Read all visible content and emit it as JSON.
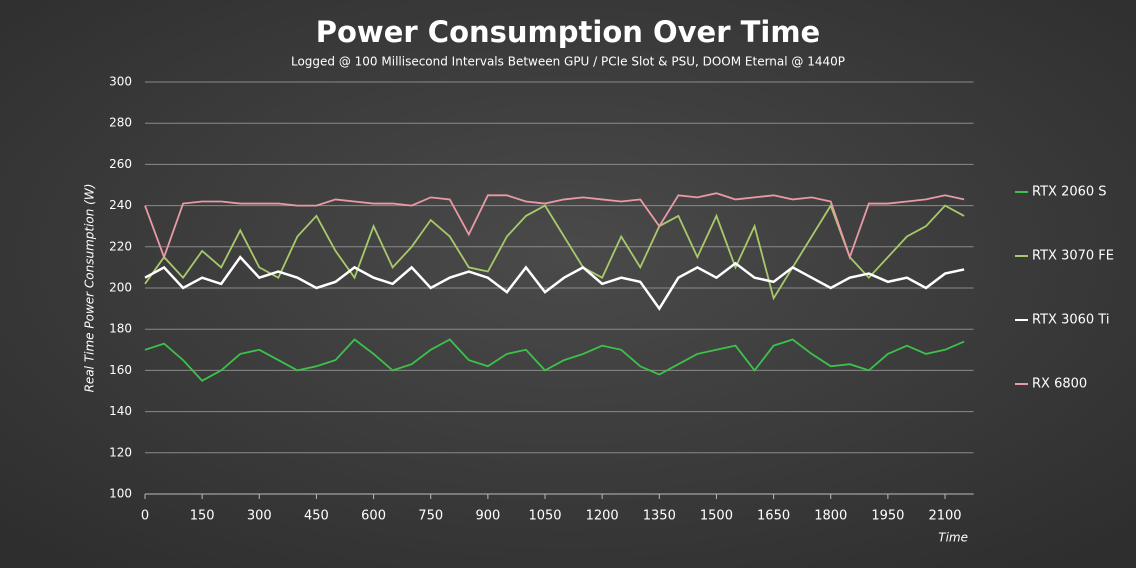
{
  "chart_data": {
    "type": "line",
    "title": "Power Consumption Over Time",
    "subtitle": "Logged @ 100 Millisecond Intervals Between GPU / PCIe Slot & PSU, DOOM Eternal @ 1440P",
    "y_label": "Real Time Power Consumption (W)",
    "x_label": "Time",
    "x": [
      0,
      50,
      100,
      150,
      200,
      250,
      300,
      350,
      400,
      450,
      500,
      550,
      600,
      650,
      700,
      750,
      800,
      850,
      900,
      950,
      1000,
      1050,
      1100,
      1150,
      1200,
      1250,
      1300,
      1350,
      1400,
      1450,
      1500,
      1550,
      1600,
      1650,
      1700,
      1750,
      1800,
      1850,
      1900,
      1950,
      2000,
      2050,
      2100,
      2150
    ],
    "xlim": [
      0,
      2175
    ],
    "xticks": [
      0,
      150,
      300,
      450,
      600,
      750,
      900,
      1050,
      1200,
      1350,
      1500,
      1650,
      1800,
      1950,
      2100
    ],
    "ylim": [
      100,
      300
    ],
    "yticks": [
      100,
      120,
      140,
      160,
      180,
      200,
      220,
      240,
      260,
      280,
      300
    ],
    "grid": true,
    "legend": "right",
    "series": [
      {
        "name": "RTX 2060 S",
        "color": "#3cc24a",
        "values": [
          170,
          173,
          165,
          155,
          160,
          168,
          170,
          165,
          160,
          162,
          165,
          175,
          168,
          160,
          163,
          170,
          175,
          165,
          162,
          168,
          170,
          160,
          165,
          168,
          172,
          170,
          162,
          158,
          163,
          168,
          170,
          172,
          160,
          172,
          175,
          168,
          162,
          163,
          160,
          168,
          172,
          168,
          170,
          174
        ]
      },
      {
        "name": "RTX 3070 FE",
        "color": "#a8c96a",
        "values": [
          202,
          215,
          205,
          218,
          210,
          228,
          210,
          205,
          225,
          235,
          218,
          205,
          230,
          210,
          220,
          233,
          225,
          210,
          208,
          225,
          235,
          240,
          225,
          210,
          205,
          225,
          210,
          230,
          235,
          215,
          235,
          210,
          230,
          195,
          210,
          225,
          240,
          215,
          205,
          215,
          225,
          230,
          240,
          235
        ]
      },
      {
        "name": "RTX 3060 Ti",
        "color": "#ffffff",
        "values": [
          205,
          210,
          200,
          205,
          202,
          215,
          205,
          208,
          205,
          200,
          203,
          210,
          205,
          202,
          210,
          200,
          205,
          208,
          205,
          198,
          210,
          198,
          205,
          210,
          202,
          205,
          203,
          190,
          205,
          210,
          205,
          212,
          205,
          203,
          210,
          205,
          200,
          205,
          207,
          203,
          205,
          200,
          207,
          209
        ]
      },
      {
        "name": "RX 6800",
        "color": "#e89aa5",
        "values": [
          240,
          215,
          241,
          242,
          242,
          241,
          241,
          241,
          240,
          240,
          243,
          242,
          241,
          241,
          240,
          244,
          243,
          226,
          245,
          245,
          242,
          241,
          243,
          244,
          243,
          242,
          243,
          230,
          245,
          244,
          246,
          243,
          244,
          245,
          243,
          244,
          242,
          215,
          241,
          241,
          242,
          243,
          245,
          243
        ]
      }
    ]
  }
}
